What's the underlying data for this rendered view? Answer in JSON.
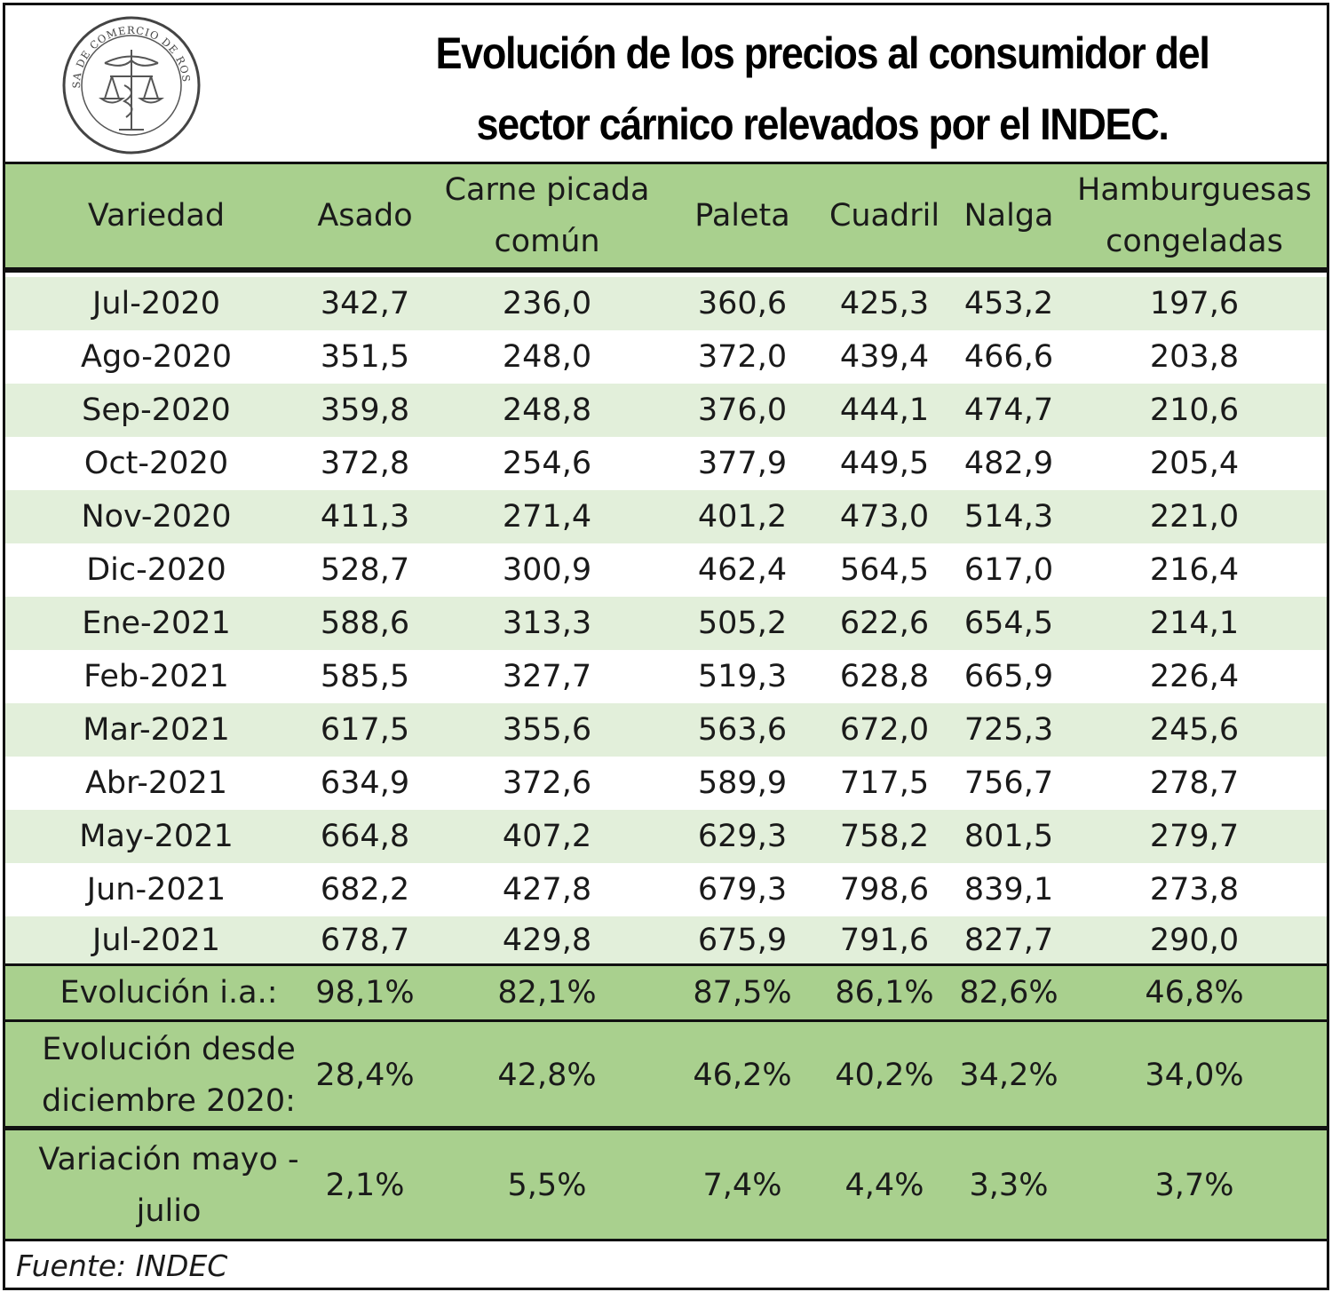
{
  "title": {
    "line1": "Evolución de los precios al consumidor del",
    "line2": "sector cárnico relevados por el INDEC."
  },
  "logo": {
    "icon": "bolsa-de-comercio-seal-icon",
    "text": "BOLSA DE COMERCIO DE ROSARIO"
  },
  "colors": {
    "header_green": "#a9d08e",
    "band_light_green": "#e2efda",
    "border": "#111111"
  },
  "chart_data": {
    "type": "table",
    "columns": [
      "Variedad",
      "Asado",
      "Carne picada común",
      "Paleta",
      "Cuadril",
      "Nalga",
      "Hamburguesas congeladas"
    ],
    "rows": [
      [
        "Jul-2020",
        "342,7",
        "236,0",
        "360,6",
        "425,3",
        "453,2",
        "197,6"
      ],
      [
        "Ago-2020",
        "351,5",
        "248,0",
        "372,0",
        "439,4",
        "466,6",
        "203,8"
      ],
      [
        "Sep-2020",
        "359,8",
        "248,8",
        "376,0",
        "444,1",
        "474,7",
        "210,6"
      ],
      [
        "Oct-2020",
        "372,8",
        "254,6",
        "377,9",
        "449,5",
        "482,9",
        "205,4"
      ],
      [
        "Nov-2020",
        "411,3",
        "271,4",
        "401,2",
        "473,0",
        "514,3",
        "221,0"
      ],
      [
        "Dic-2020",
        "528,7",
        "300,9",
        "462,4",
        "564,5",
        "617,0",
        "216,4"
      ],
      [
        "Ene-2021",
        "588,6",
        "313,3",
        "505,2",
        "622,6",
        "654,5",
        "214,1"
      ],
      [
        "Feb-2021",
        "585,5",
        "327,7",
        "519,3",
        "628,8",
        "665,9",
        "226,4"
      ],
      [
        "Mar-2021",
        "617,5",
        "355,6",
        "563,6",
        "672,0",
        "725,3",
        "245,6"
      ],
      [
        "Abr-2021",
        "634,9",
        "372,6",
        "589,9",
        "717,5",
        "756,7",
        "278,7"
      ],
      [
        "May-2021",
        "664,8",
        "407,2",
        "629,3",
        "758,2",
        "801,5",
        "279,7"
      ],
      [
        "Jun-2021",
        "682,2",
        "427,8",
        "679,3",
        "798,6",
        "839,1",
        "273,8"
      ],
      [
        "Jul-2021",
        "678,7",
        "429,8",
        "675,9",
        "791,6",
        "827,7",
        "290,0"
      ]
    ],
    "summary": [
      [
        "Evolución i.a.:",
        "98,1%",
        "82,1%",
        "87,5%",
        "86,1%",
        "82,6%",
        "46,8%"
      ],
      [
        "Evolución desde diciembre 2020:",
        "28,4%",
        "42,8%",
        "46,2%",
        "40,2%",
        "34,2%",
        "34,0%"
      ],
      [
        "Variación mayo - julio",
        "2,1%",
        "5,5%",
        "7,4%",
        "4,4%",
        "3,3%",
        "3,7%"
      ]
    ],
    "source": "Fuente: INDEC"
  }
}
